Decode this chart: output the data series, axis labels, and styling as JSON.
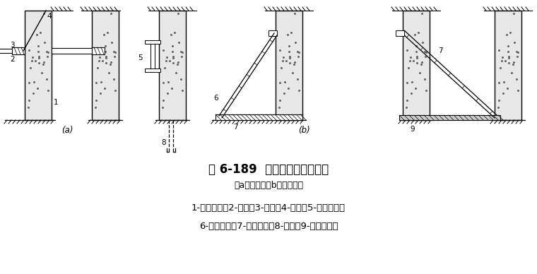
{
  "title": "图 6-189  水泥土墙加临时支撑",
  "subtitle": "（a）对撑；（b）竖向斜撑",
  "legend_line1": "1-水泥土墙；2-围檩；3-对撑；4-吊索；5-支承型钢；",
  "legend_line2": "6-竖向斜撑；7-铺地型钢；8-板桩；9-混凝土垫层",
  "bg_color": "#ffffff",
  "line_color": "#000000",
  "wall_fill": "#e8e8e8",
  "title_fontsize": 12,
  "label_fontsize": 9,
  "legend_fontsize": 9.5,
  "fig_w": 7.6,
  "fig_h": 3.88,
  "dpi": 100
}
